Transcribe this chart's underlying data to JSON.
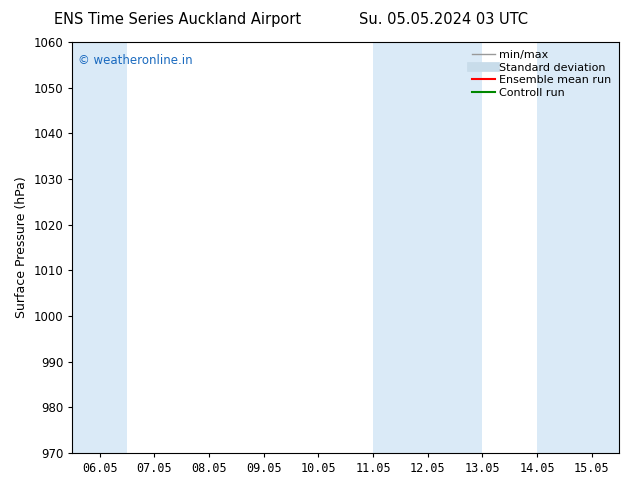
{
  "title_left": "ENS Time Series Auckland Airport",
  "title_right": "Su. 05.05.2024 03 UTC",
  "ylabel": "Surface Pressure (hPa)",
  "ylim": [
    970,
    1060
  ],
  "yticks": [
    970,
    980,
    990,
    1000,
    1010,
    1020,
    1030,
    1040,
    1050,
    1060
  ],
  "xtick_labels": [
    "06.05",
    "07.05",
    "08.05",
    "09.05",
    "10.05",
    "11.05",
    "12.05",
    "13.05",
    "14.05",
    "15.05"
  ],
  "watermark": "© weatheronline.in",
  "watermark_color": "#1a6abf",
  "bg_color": "#ffffff",
  "plot_bg_color": "#ffffff",
  "shaded_color": "#daeaf7",
  "legend_entries": [
    {
      "label": "min/max",
      "color": "#999999",
      "lw": 1.0,
      "style": "solid"
    },
    {
      "label": "Standard deviation",
      "color": "#c8dcea",
      "lw": 7,
      "style": "solid"
    },
    {
      "label": "Ensemble mean run",
      "color": "#ff0000",
      "lw": 1.5,
      "style": "solid"
    },
    {
      "label": "Controll run",
      "color": "#008800",
      "lw": 1.5,
      "style": "solid"
    }
  ],
  "font_size_title": 10.5,
  "font_size_ticks": 8.5,
  "font_size_legend": 8,
  "font_size_ylabel": 9,
  "shaded_day_indices": [
    0,
    5,
    6,
    8,
    9
  ]
}
